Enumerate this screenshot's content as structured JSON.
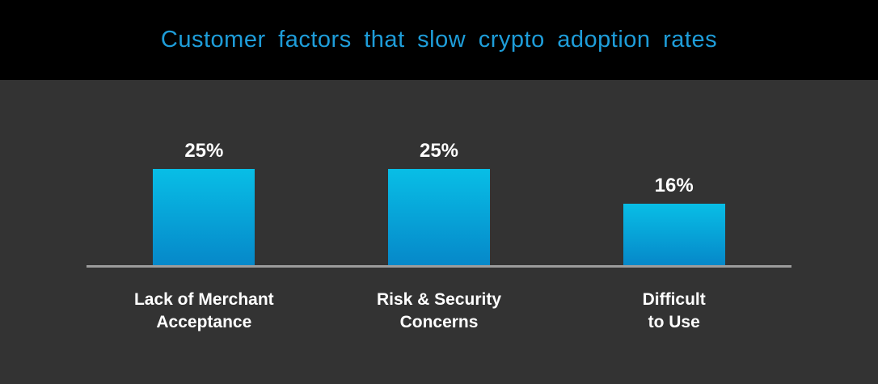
{
  "chart_data": {
    "type": "bar",
    "title": "Customer factors that slow crypto adoption rates",
    "categories": [
      "Lack of Merchant\nAcceptance",
      "Risk & Security\nConcerns",
      "Difficult\nto Use"
    ],
    "values": [
      25,
      25,
      16
    ],
    "value_labels": [
      "25%",
      "25%",
      "16%"
    ],
    "unit": "%",
    "xlabel": "",
    "ylabel": "",
    "y_axis_visible": false,
    "grid": false,
    "legend": false,
    "bar_orientation": "vertical"
  },
  "colors": {
    "header_background": "#000000",
    "title_text": "#1e9dd9",
    "chart_background": "#333333",
    "bar_gradient_top": "#08bee6",
    "bar_gradient_bottom": "#0688c9",
    "axis_line": "#9c9c9c",
    "label_text": "#ffffff"
  }
}
